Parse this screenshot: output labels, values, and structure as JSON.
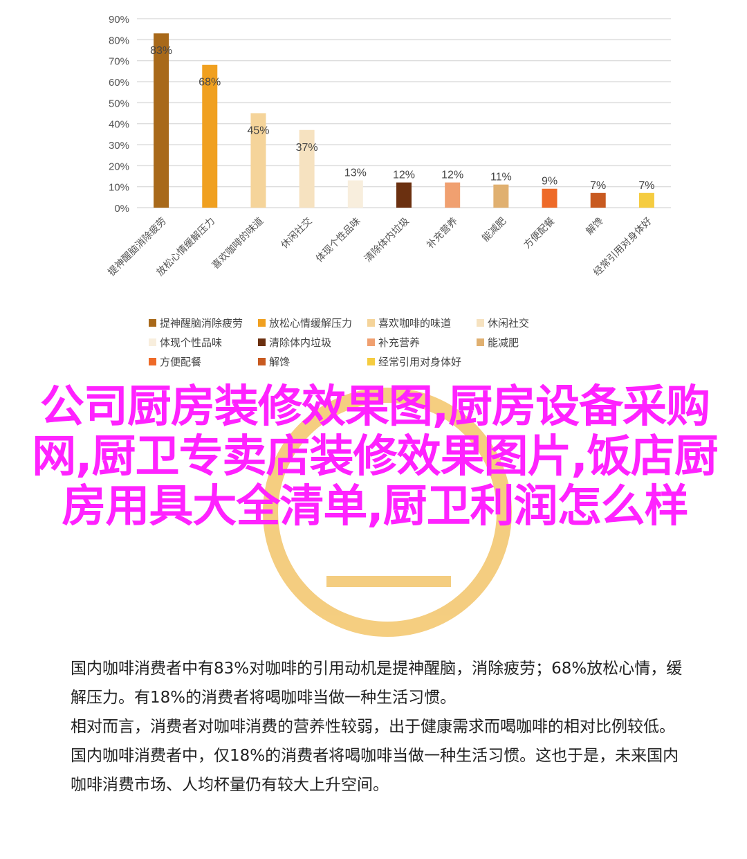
{
  "chart_data": {
    "type": "bar",
    "categories": [
      "提神醒脑消除疲劳",
      "放松心情缓解压力",
      "喜欢咖啡的味道",
      "休闲社交",
      "体现个性品味",
      "清除体内垃圾",
      "补充营养",
      "能减肥",
      "方便配餐",
      "解馋",
      "经常引用对身体好"
    ],
    "values": [
      83,
      68,
      45,
      37,
      13,
      12,
      12,
      11,
      9,
      7,
      7
    ],
    "data_labels": [
      "83%",
      "68%",
      "45%",
      "37%",
      "13%",
      "12%",
      "12%",
      "11%",
      "9%",
      "7%",
      "7%"
    ],
    "colors": [
      "#a8691a",
      "#f0a020",
      "#f5d49a",
      "#f6e2c0",
      "#f8eedd",
      "#6b3010",
      "#f0a070",
      "#e0b070",
      "#ee6a28",
      "#c85a20",
      "#f5cc40"
    ],
    "ylim": [
      0,
      90
    ],
    "yticks": [
      "0%",
      "10%",
      "20%",
      "30%",
      "40%",
      "50%",
      "60%",
      "70%",
      "80%",
      "90%"
    ],
    "grid": true,
    "legend": "bottom"
  },
  "overlay_title": "公司厨房装修效果图,厨房设备采购网,厨卫专卖店装修效果图片,饭店厨房用具大全清单,厨卫利润怎么样",
  "paragraphs": [
    "国内咖啡消费者中有83%对咖啡的引用动机是提神醒脑，消除疲劳；68%放松心情，缓解压力。有18%的消费者将喝咖啡当做一种生活习惯。",
    "相对而言，消费者对咖啡消费的营养性较弱，出于健康需求而喝咖啡的相对比例较低。",
    "国内咖啡消费者中，仅18%的消费者将喝咖啡当做一种生活习惯。这也于是，未来国内咖啡消费市场、人均杯量仍有较大上升空间。"
  ]
}
